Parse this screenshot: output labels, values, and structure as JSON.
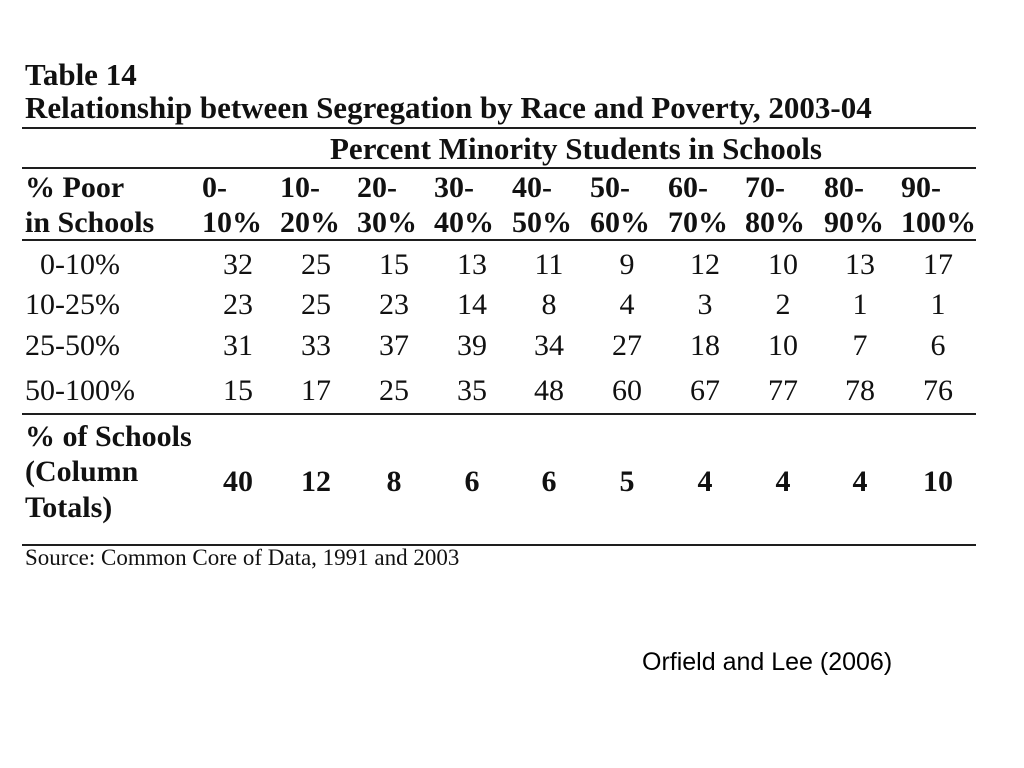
{
  "table": {
    "caption": "Table 14",
    "title": "Relationship between Segregation by Race and Poverty, 2003-04",
    "column_group_header": "Percent Minority Students in Schools",
    "row_header": [
      "% Poor",
      "in Schools"
    ],
    "column_headers": [
      [
        "0-",
        "10%"
      ],
      [
        "10-",
        "20%"
      ],
      [
        "20-",
        "30%"
      ],
      [
        "30-",
        "40%"
      ],
      [
        "40-",
        "50%"
      ],
      [
        "50-",
        "60%"
      ],
      [
        "60-",
        "70%"
      ],
      [
        "70-",
        "80%"
      ],
      [
        "80-",
        "90%"
      ],
      [
        "90-",
        "100%"
      ]
    ],
    "rows": [
      {
        "label": "0-10%",
        "values": [
          32,
          25,
          15,
          13,
          11,
          9,
          12,
          10,
          13,
          17
        ]
      },
      {
        "label": "10-25%",
        "values": [
          23,
          25,
          23,
          14,
          8,
          4,
          3,
          2,
          1,
          1
        ]
      },
      {
        "label": "25-50%",
        "values": [
          31,
          33,
          37,
          39,
          34,
          27,
          18,
          10,
          7,
          6
        ]
      },
      {
        "label": "50-100%",
        "values": [
          15,
          17,
          25,
          35,
          48,
          60,
          67,
          77,
          78,
          76
        ]
      }
    ],
    "totals": {
      "label": [
        "% of Schools",
        "(Column",
        "Totals)"
      ],
      "values": [
        40,
        12,
        8,
        6,
        6,
        5,
        4,
        4,
        4,
        10
      ]
    },
    "source": "Source: Common Core of Data, 1991 and 2003"
  },
  "citation": "Orfield and Lee (2006)"
}
